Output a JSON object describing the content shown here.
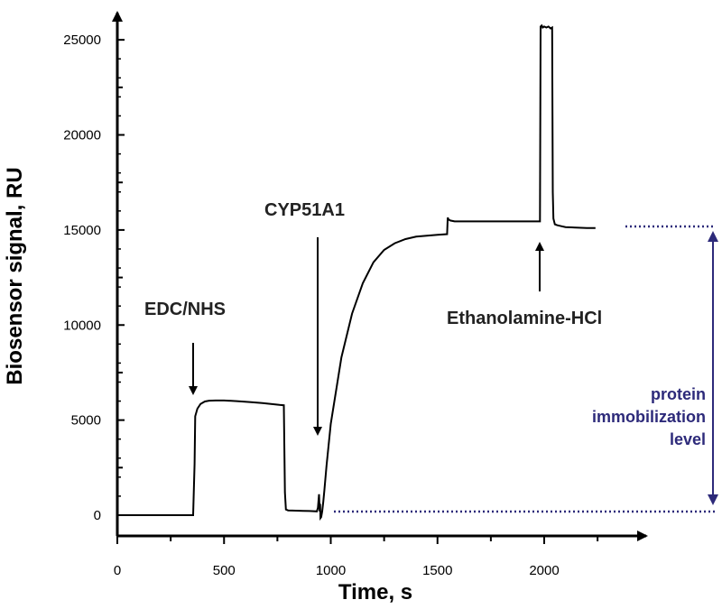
{
  "chart_data": {
    "type": "line",
    "xlabel": "Time, s",
    "ylabel": "Biosensor signal, RU",
    "xlim": [
      0,
      2400
    ],
    "ylim": [
      -1000,
      26000
    ],
    "x_ticks": [
      0,
      500,
      1000,
      1500,
      2000
    ],
    "y_ticks": [
      0,
      5000,
      10000,
      15000,
      20000,
      25000
    ],
    "grid": false,
    "series": [
      {
        "x": [
          0,
          355,
          362,
          365,
          375,
          390,
          410,
          430,
          460,
          500,
          560,
          620,
          680,
          720,
          760,
          780,
          785,
          790,
          800,
          820,
          870,
          900,
          935,
          940,
          945,
          948,
          950,
          952,
          955,
          960,
          965,
          970,
          980,
          1000,
          1050,
          1100,
          1150,
          1200,
          1250,
          1300,
          1350,
          1400,
          1450,
          1500,
          1545,
          1548,
          1552,
          1560,
          1580,
          1650,
          1750,
          1850,
          1960,
          1980,
          1983,
          1988,
          1993,
          2000,
          2010,
          2020,
          2030,
          2037,
          2040,
          2043,
          2050,
          2060,
          2080,
          2100,
          2200,
          2240
        ],
        "y": [
          0,
          0,
          2700,
          5200,
          5600,
          5850,
          5980,
          6020,
          6030,
          6030,
          6000,
          5950,
          5900,
          5850,
          5800,
          5780,
          1200,
          300,
          250,
          240,
          230,
          220,
          200,
          400,
          1100,
          200,
          600,
          -150,
          -100,
          200,
          700,
          1300,
          2600,
          4800,
          8300,
          10600,
          12200,
          13300,
          13950,
          14300,
          14520,
          14650,
          14700,
          14750,
          14780,
          15650,
          15550,
          15500,
          15450,
          15450,
          15450,
          15450,
          15450,
          15450,
          25700,
          25750,
          25650,
          25700,
          25650,
          25700,
          25600,
          25650,
          17000,
          15600,
          15300,
          15250,
          15200,
          15150,
          15100,
          15100
        ]
      }
    ],
    "annotations": [
      {
        "text": "EDC/NHS",
        "x": 360
      },
      {
        "text": "CYP51A1",
        "x": 940
      },
      {
        "text": "Ethanolamine-HCl",
        "x": 1985
      },
      {
        "text_lines": [
          "protein",
          "immobilization",
          "level"
        ],
        "from_y": 15100,
        "to_y": 150
      }
    ],
    "colors": {
      "line": "#000000",
      "annotation": "#2d2a7a"
    }
  }
}
